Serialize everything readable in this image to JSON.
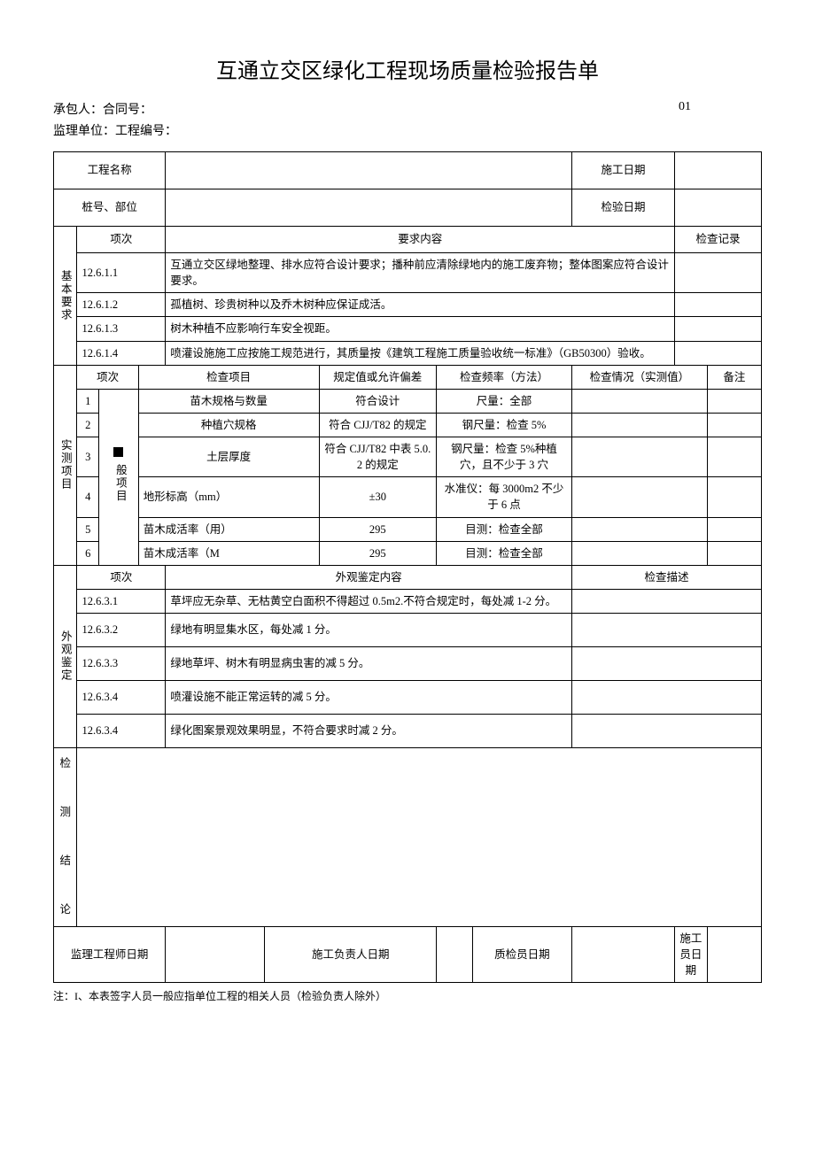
{
  "title": "互通立交区绿化工程现场质量检验报告单",
  "meta": {
    "contractor_label": "承包人：合同号：",
    "contract_seq": "01",
    "supervisor_label": "监理单位：工程编号："
  },
  "header": {
    "project_name_label": "工程名称",
    "construction_date_label": "施工日期",
    "station_label": "桩号、部位",
    "inspection_date_label": "检验日期"
  },
  "basic": {
    "section_label": "基本要求",
    "col_item": "项次",
    "col_content": "要求内容",
    "col_record": "检查记录",
    "rows": [
      {
        "no": "12.6.1.1",
        "content": "互通立交区绿地整理、排水应符合设计要求；播种前应清除绿地内的施工废弃物；整体图案应符合设计要求。"
      },
      {
        "no": "12.6.1.2",
        "content": "孤植树、珍贵树种以及乔木树种应保证成活。"
      },
      {
        "no": "12.6.1.3",
        "content": "树木种植不应影响行车安全视距。"
      },
      {
        "no": "12.6.1.4",
        "content": "喷灌设施施工应按施工规范进行，其质量按《建筑工程施工质量验收统一标准》（GB50300）验收。"
      }
    ]
  },
  "measured": {
    "section_label": "实测项目",
    "group_label": "般项目",
    "col_item_no": "项次",
    "col_check_item": "检查项目",
    "col_spec": "规定值或允许偏差",
    "col_freq": "检查频率（方法）",
    "col_result": "检查情况（实测值）",
    "col_remark": "备注",
    "rows": [
      {
        "n": "1",
        "item": "苗木规格与数量",
        "spec": "符合设计",
        "freq": "尺量：全部"
      },
      {
        "n": "2",
        "item": "种植穴规格",
        "spec": "符合 CJJ/T82 的规定",
        "freq": "钢尺量：检查 5%"
      },
      {
        "n": "3",
        "item": "土层厚度",
        "spec": "符合 CJJ/T82 中表 5.0.2 的规定",
        "freq": "钢尺量：检查 5%种植穴，且不少于 3 穴"
      },
      {
        "n": "4",
        "item": "地形标高（mm）",
        "spec": "±30",
        "freq": "水准仪：每 3000m2 不少于 6 点"
      },
      {
        "n": "5",
        "item": "苗木成活率（用）",
        "spec": "295",
        "freq": "目测：检查全部"
      },
      {
        "n": "6",
        "item": "苗木成活率（M",
        "spec": "295",
        "freq": "目测：检查全部"
      }
    ]
  },
  "appearance": {
    "section_label": "外观鉴定",
    "col_item": "项次",
    "col_content": "外观鉴定内容",
    "col_desc": "检查描述",
    "rows": [
      {
        "no": "12.6.3.1",
        "content": "草坪应无杂草、无枯黄空白面积不得超过 0.5m2.不符合规定时，每处减 1-2 分。"
      },
      {
        "no": "12.6.3.2",
        "content": "绿地有明显集水区，每处减 1 分。"
      },
      {
        "no": "12.6.3.3",
        "content": "绿地草坪、树木有明显病虫害的减 5 分。"
      },
      {
        "no": "12.6.3.4",
        "content": "喷灌设施不能正常运转的减 5 分。"
      },
      {
        "no": "12.6.3.4",
        "content": "绿化图案景观效果明显，不符合要求时减 2 分。"
      }
    ]
  },
  "conclusion_label": "检\n\n测\n\n结\n\n论",
  "signatures": {
    "supervisor": "监理工程师日期",
    "construction_leader": "施工负责人日期",
    "qc": "质检员日期",
    "worker": "施工员日期"
  },
  "footnote": "注：I、本表签字人员一般应指单位工程的相关人员（检验负责人除外）"
}
